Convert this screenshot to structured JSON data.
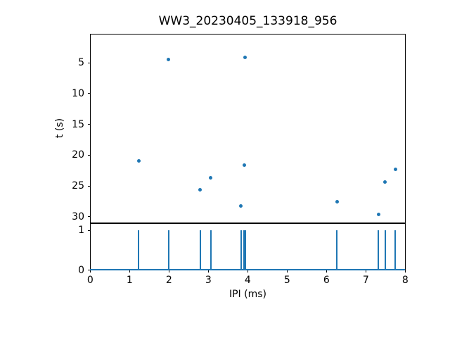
{
  "title": "WW3_20230405_133918_956",
  "colors": {
    "accent": "#1f77b4",
    "axis": "#000000",
    "background": "#ffffff"
  },
  "chart_data": [
    {
      "type": "scatter",
      "title": "WW3_20230405_133918_956",
      "xlabel": "",
      "ylabel": "t (s)",
      "x": [
        1.23,
        1.99,
        2.79,
        3.06,
        3.83,
        3.91,
        3.94,
        6.27,
        7.32,
        7.49,
        7.75
      ],
      "y": [
        20.9,
        4.5,
        25.6,
        23.7,
        28.3,
        21.6,
        4.1,
        27.6,
        29.6,
        24.4,
        22.3
      ],
      "xlim": [
        0,
        8
      ],
      "ylim": [
        31.0,
        0.3
      ],
      "y_inverted": true,
      "yticks": [
        5,
        10,
        15,
        20,
        25,
        30
      ],
      "xticks": [],
      "grid": false,
      "legend": null,
      "marker_color": "#1f77b4"
    },
    {
      "type": "stem",
      "title": "",
      "xlabel": "IPI (ms)",
      "ylabel": "",
      "x": [
        1.23,
        1.99,
        2.79,
        3.06,
        3.83,
        3.91,
        3.94,
        6.27,
        7.32,
        7.49,
        7.75
      ],
      "stem_height": 1,
      "xlim": [
        0,
        8
      ],
      "ylim": [
        0,
        1.17
      ],
      "yticks": [
        0,
        1
      ],
      "xticks": [
        0,
        1,
        2,
        3,
        4,
        5,
        6,
        7,
        8
      ],
      "grid": false,
      "legend": null,
      "line_color": "#1f77b4"
    }
  ]
}
